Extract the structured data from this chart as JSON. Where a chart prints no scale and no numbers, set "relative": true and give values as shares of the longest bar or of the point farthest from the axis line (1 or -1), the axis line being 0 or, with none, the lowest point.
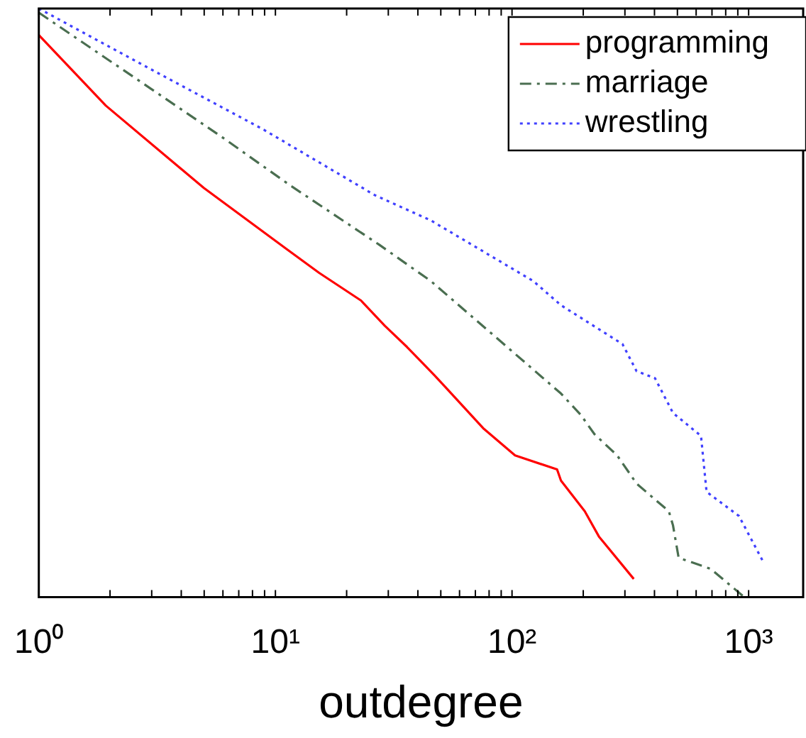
{
  "chart_data": {
    "type": "line",
    "xlabel": "outdegree",
    "log": "x",
    "relative": true,
    "legend": "top right",
    "grid": false,
    "xlim": [
      1,
      1700
    ],
    "xticks": [
      {
        "value": 1,
        "label": "10⁰"
      },
      {
        "value": 2,
        "label": null
      },
      {
        "value": 3,
        "label": null
      },
      {
        "value": 4,
        "label": null
      },
      {
        "value": 5,
        "label": null
      },
      {
        "value": 6,
        "label": null
      },
      {
        "value": 7,
        "label": null
      },
      {
        "value": 8,
        "label": null
      },
      {
        "value": 9,
        "label": null
      },
      {
        "value": 10,
        "label": "10¹"
      },
      {
        "value": 20,
        "label": null
      },
      {
        "value": 30,
        "label": null
      },
      {
        "value": 40,
        "label": null
      },
      {
        "value": 50,
        "label": null
      },
      {
        "value": 60,
        "label": null
      },
      {
        "value": 70,
        "label": null
      },
      {
        "value": 80,
        "label": null
      },
      {
        "value": 90,
        "label": null
      },
      {
        "value": 100,
        "label": "10²"
      },
      {
        "value": 200,
        "label": null
      },
      {
        "value": 300,
        "label": null
      },
      {
        "value": 400,
        "label": null
      },
      {
        "value": 500,
        "label": null
      },
      {
        "value": 600,
        "label": null
      },
      {
        "value": 700,
        "label": null
      },
      {
        "value": 800,
        "label": null
      },
      {
        "value": 900,
        "label": null
      },
      {
        "value": 1000,
        "label": "10³"
      }
    ],
    "series": [
      {
        "name": "programming",
        "color": "#ff0000",
        "line_style": "solid",
        "x": [
          1,
          1.92,
          4.99,
          11.1,
          15.3,
          23,
          29,
          36,
          47,
          52,
          76,
          103,
          155,
          161,
          203,
          233,
          327
        ],
        "values": [
          0.955,
          0.835,
          0.695,
          0.592,
          0.551,
          0.504,
          0.461,
          0.425,
          0.377,
          0.358,
          0.286,
          0.241,
          0.217,
          0.198,
          0.146,
          0.103,
          0.031
        ]
      },
      {
        "name": "marriage",
        "color": "#4a6e50",
        "line_style": "dashdot",
        "x": [
          1,
          2.97,
          5.88,
          11.6,
          27.4,
          45.4,
          98.6,
          161,
          195,
          223,
          278,
          336,
          460,
          479,
          506,
          692,
          947
        ],
        "values": [
          0.993,
          0.864,
          0.783,
          0.699,
          0.599,
          0.537,
          0.42,
          0.346,
          0.31,
          0.277,
          0.241,
          0.193,
          0.146,
          0.122,
          0.067,
          0.048,
          0.002
        ]
      },
      {
        "name": "wrestling",
        "color": "#4040ff",
        "line_style": "dotted",
        "x": [
          1,
          2.97,
          8.85,
          26.3,
          45.4,
          123,
          161,
          293,
          336,
          402,
          479,
          629,
          664,
          910,
          1146
        ],
        "values": [
          1,
          0.897,
          0.795,
          0.683,
          0.64,
          0.537,
          0.496,
          0.43,
          0.384,
          0.372,
          0.313,
          0.274,
          0.179,
          0.138,
          0.062
        ]
      }
    ]
  }
}
